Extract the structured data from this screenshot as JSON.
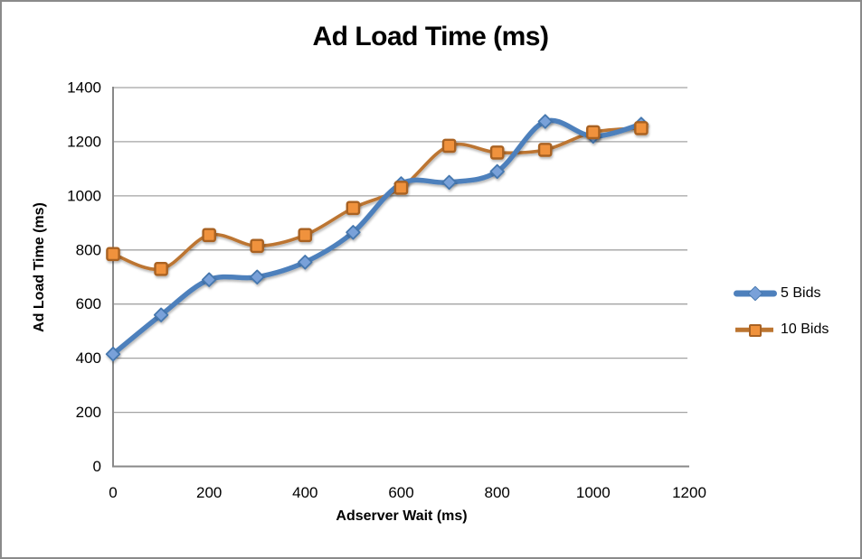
{
  "frame": {
    "background": "#ffffff",
    "border_color": "#8a8a8a"
  },
  "chart_data": {
    "type": "line",
    "title": "Ad Load Time (ms)",
    "xlabel": "Adserver Wait (ms)",
    "ylabel": "Ad Load Time (ms)",
    "x": [
      0,
      100,
      200,
      300,
      400,
      500,
      600,
      700,
      800,
      900,
      1000,
      1100
    ],
    "series": [
      {
        "name": "5 Bids",
        "marker": "diamond",
        "line_color": "#4e80bc",
        "marker_fill": "#79a1d9",
        "marker_stroke": "#4577ae",
        "line_width": 5.5,
        "values": [
          415,
          560,
          690,
          700,
          755,
          865,
          1045,
          1050,
          1090,
          1275,
          1220,
          1265
        ]
      },
      {
        "name": "10 Bids",
        "marker": "square",
        "line_color": "#bc7530",
        "marker_fill": "#f0923c",
        "marker_stroke": "#a96223",
        "line_width": 3.6,
        "values": [
          785,
          730,
          855,
          815,
          855,
          955,
          1030,
          1185,
          1160,
          1170,
          1235,
          1250
        ]
      }
    ],
    "xlim": [
      0,
      1200
    ],
    "ylim": [
      0,
      1400
    ],
    "x_ticks": [
      0,
      200,
      400,
      600,
      800,
      1000,
      1200
    ],
    "y_ticks": [
      0,
      200,
      400,
      600,
      800,
      1000,
      1200,
      1400
    ],
    "grid": "horizontal-only",
    "smooth_lines": true,
    "legend_position": "right",
    "gridline_color": "#a3a3a3",
    "axis_color": "#898989",
    "tick_label_color": "#000000"
  }
}
